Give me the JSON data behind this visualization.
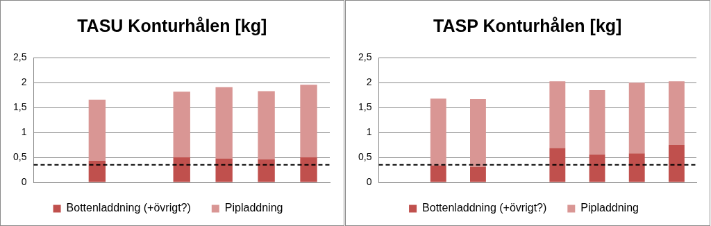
{
  "chart_data": [
    {
      "type": "bar",
      "title": "TASU Konturhålen [kg]",
      "categories": [
        null,
        null,
        null,
        null,
        null,
        null,
        null
      ],
      "stacked": true,
      "series": [
        {
          "name": "Bottenladdning (+övrigt?)",
          "color": "#c0504d",
          "values": [
            null,
            0.43,
            null,
            0.5,
            0.48,
            0.46,
            0.5
          ]
        },
        {
          "name": "Pipladdning",
          "color": "#d99694",
          "values": [
            null,
            1.23,
            null,
            1.32,
            1.43,
            1.37,
            1.46
          ]
        }
      ],
      "ylim": [
        0,
        2.5
      ],
      "yticks": [
        0,
        {
          "value": 0.5,
          "label": "0,5"
        },
        1,
        {
          "value": 1.5,
          "label": "1,5"
        },
        2,
        {
          "value": 2.5,
          "label": "2,5"
        }
      ],
      "grid": "y",
      "legend": "bottom",
      "ref_lines": [
        {
          "axis": "y",
          "value": 0.35,
          "color": "#000000",
          "line_style": "dashed"
        }
      ]
    },
    {
      "type": "bar",
      "title": "TASP Konturhålen [kg]",
      "categories": [
        null,
        null,
        null,
        null,
        null,
        null,
        null,
        null
      ],
      "stacked": true,
      "series": [
        {
          "name": "Bottenladdning (+övrigt?)",
          "color": "#c0504d",
          "values": [
            null,
            0.34,
            0.31,
            null,
            0.69,
            0.56,
            0.58,
            0.75
          ]
        },
        {
          "name": "Pipladdning",
          "color": "#d99694",
          "values": [
            null,
            1.34,
            1.36,
            null,
            1.34,
            1.29,
            1.42,
            1.28
          ]
        }
      ],
      "ylim": [
        0,
        2.5
      ],
      "yticks": [
        0,
        {
          "value": 0.5,
          "label": "0,5"
        },
        1,
        {
          "value": 1.5,
          "label": "1,5"
        },
        2,
        {
          "value": 2.5,
          "label": "2,5"
        }
      ],
      "grid": "y",
      "legend": "bottom",
      "ref_lines": [
        {
          "axis": "y",
          "value": 0.35,
          "color": "#000000",
          "line_style": "dashed"
        }
      ]
    }
  ]
}
